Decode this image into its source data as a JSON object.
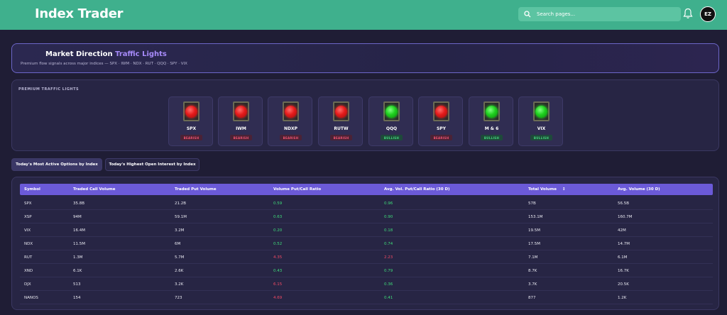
{
  "header": {
    "title": "Index Trader",
    "search_placeholder": "Search pages...",
    "avatar_text": "EZ"
  },
  "hero": {
    "title_main": "Market Direction ",
    "title_accent": "Traffic Lights",
    "subtitle": "Premium flow signals across major indices — SPX · IWM · NDX · RUT · QQQ · SPY · VIX"
  },
  "lights": {
    "label": "PREMIUM TRAFFIC LIGHTS",
    "items": [
      {
        "name": "SPX",
        "status": "BEARISH",
        "color": "red"
      },
      {
        "name": "IWM",
        "status": "BEARISH",
        "color": "red"
      },
      {
        "name": "NDXP",
        "status": "BEARISH",
        "color": "red"
      },
      {
        "name": "RUTW",
        "status": "BEARISH",
        "color": "red"
      },
      {
        "name": "QQQ",
        "status": "BULLISH",
        "color": "green"
      },
      {
        "name": "SPY",
        "status": "BEARISH",
        "color": "red"
      },
      {
        "name": "M & 6",
        "status": "BULLISH",
        "color": "green"
      },
      {
        "name": "VIX",
        "status": "BULLISH",
        "color": "green"
      }
    ]
  },
  "tabs": {
    "active": "Today's Most Active Options by Index",
    "inactive": "Today's Highest Open Interest by Index"
  },
  "table": {
    "columns": [
      "Symbol",
      "Traded Call Volume",
      "Traded Put Volume",
      "Volume Put/Call Ratio",
      "Avg. Vol. Put/Call Ratio (30 D)",
      "Total Volume",
      "Avg. Volume (30 D)"
    ],
    "sort_indicator": "↕",
    "rows": [
      {
        "symbol": "SPX",
        "call": "35.8B",
        "put": "21.2B",
        "ratio": "0.59",
        "ratio_state": "good",
        "avg_ratio": "0.96",
        "avg_state": "good",
        "total": "57B",
        "avg_vol": "56.5B"
      },
      {
        "symbol": "XSP",
        "call": "94M",
        "put": "59.1M",
        "ratio": "0.63",
        "ratio_state": "good",
        "avg_ratio": "0.90",
        "avg_state": "good",
        "total": "153.1M",
        "avg_vol": "160.7M"
      },
      {
        "symbol": "VIX",
        "call": "16.4M",
        "put": "3.2M",
        "ratio": "0.20",
        "ratio_state": "good",
        "avg_ratio": "0.18",
        "avg_state": "good",
        "total": "19.5M",
        "avg_vol": "42M"
      },
      {
        "symbol": "NDX",
        "call": "11.5M",
        "put": "6M",
        "ratio": "0.52",
        "ratio_state": "good",
        "avg_ratio": "0.74",
        "avg_state": "good",
        "total": "17.5M",
        "avg_vol": "14.7M"
      },
      {
        "symbol": "RUT",
        "call": "1.3M",
        "put": "5.7M",
        "ratio": "4.35",
        "ratio_state": "bad",
        "avg_ratio": "2.23",
        "avg_state": "bad",
        "total": "7.1M",
        "avg_vol": "6.1M"
      },
      {
        "symbol": "XND",
        "call": "6.1K",
        "put": "2.6K",
        "ratio": "0.43",
        "ratio_state": "good",
        "avg_ratio": "0.79",
        "avg_state": "good",
        "total": "8.7K",
        "avg_vol": "16.7K"
      },
      {
        "symbol": "DJX",
        "call": "513",
        "put": "3.2K",
        "ratio": "6.15",
        "ratio_state": "bad",
        "avg_ratio": "0.36",
        "avg_state": "good",
        "total": "3.7K",
        "avg_vol": "20.5K"
      },
      {
        "symbol": "NANOS",
        "call": "154",
        "put": "723",
        "ratio": "4.69",
        "ratio_state": "bad",
        "avg_ratio": "0.41",
        "avg_state": "good",
        "total": "877",
        "avg_vol": "1.2K"
      }
    ]
  },
  "colors": {
    "header_bg": "#3fb08d",
    "accent": "#a78bfa",
    "table_header": "#6b5ad8",
    "good": "#3fdc7a",
    "bad": "#f04a64"
  }
}
